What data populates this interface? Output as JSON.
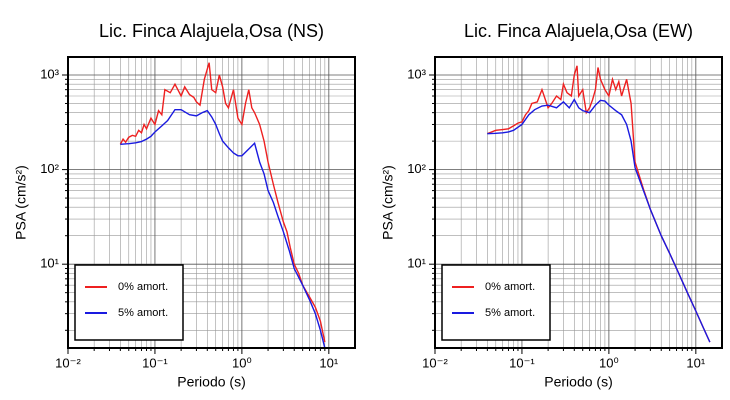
{
  "chart_data": [
    {
      "type": "line",
      "title": "Lic. Finca Alajuela,Osa (NS)",
      "x_label": "Periodo (s)",
      "y_label": "PSA (cm/s²)",
      "log_x": true,
      "log_y": true,
      "grid": true,
      "legend": "lower left",
      "xlim": [
        0.01,
        20
      ],
      "ylim": [
        1.3,
        1550
      ],
      "xticks": [
        {
          "value": 0.01,
          "label": "10⁻²"
        },
        {
          "value": 0.1,
          "label": "10⁻¹"
        },
        {
          "value": 1,
          "label": "10⁰"
        },
        {
          "value": 10,
          "label": "10¹"
        }
      ],
      "yticks": [
        {
          "value": 10,
          "label": "10¹"
        },
        {
          "value": 100,
          "label": "10²"
        },
        {
          "value": 1000,
          "label": "10³"
        }
      ],
      "xminorticks": [
        0.02,
        0.03,
        0.04,
        0.05,
        0.06,
        0.07,
        0.08,
        0.09,
        0.2,
        0.3,
        0.4,
        0.5,
        0.6,
        0.7,
        0.8,
        0.9,
        2,
        3,
        4,
        5,
        6,
        7,
        8,
        9
      ],
      "yminorticks": [
        2,
        3,
        4,
        5,
        6,
        7,
        8,
        9,
        20,
        30,
        40,
        50,
        60,
        70,
        80,
        90,
        200,
        300,
        400,
        500,
        600,
        700,
        800,
        900
      ],
      "series": [
        {
          "name": "0% amort.",
          "color": "#ee2020",
          "x": [
            0.04,
            0.043,
            0.046,
            0.05,
            0.055,
            0.06,
            0.065,
            0.07,
            0.075,
            0.08,
            0.09,
            0.1,
            0.11,
            0.12,
            0.13,
            0.15,
            0.17,
            0.2,
            0.22,
            0.25,
            0.28,
            0.3,
            0.33,
            0.37,
            0.42,
            0.45,
            0.5,
            0.55,
            0.6,
            0.65,
            0.7,
            0.8,
            0.9,
            1.0,
            1.1,
            1.2,
            1.3,
            1.4,
            1.6,
            1.8,
            2.0,
            2.3,
            2.6,
            3.0,
            3.3,
            3.6,
            4.0,
            4.5,
            5.0,
            6.0,
            7.0,
            8.0,
            9.0
          ],
          "values": [
            185,
            210,
            195,
            220,
            230,
            225,
            260,
            245,
            300,
            270,
            350,
            300,
            420,
            380,
            700,
            650,
            800,
            600,
            750,
            620,
            580,
            520,
            480,
            900,
            1350,
            700,
            650,
            1000,
            750,
            500,
            450,
            700,
            350,
            300,
            500,
            700,
            450,
            400,
            300,
            200,
            120,
            70,
            45,
            28,
            22,
            15,
            10,
            8,
            6,
            4.5,
            3.5,
            2.5,
            1.5
          ]
        },
        {
          "name": "5% amort.",
          "color": "#1a1ae0",
          "x": [
            0.04,
            0.05,
            0.06,
            0.07,
            0.08,
            0.09,
            0.1,
            0.12,
            0.14,
            0.17,
            0.2,
            0.25,
            0.3,
            0.35,
            0.4,
            0.45,
            0.5,
            0.55,
            0.6,
            0.7,
            0.8,
            0.9,
            1.0,
            1.2,
            1.4,
            1.6,
            1.8,
            2.0,
            2.3,
            2.6,
            3.0,
            3.5,
            4.0,
            5.0,
            6.0,
            7.0,
            8.0,
            9.0
          ],
          "values": [
            185,
            188,
            192,
            198,
            210,
            225,
            250,
            290,
            330,
            430,
            430,
            380,
            370,
            400,
            420,
            360,
            300,
            240,
            200,
            170,
            150,
            140,
            140,
            165,
            190,
            120,
            90,
            60,
            45,
            32,
            22,
            14,
            9,
            6,
            4.2,
            3,
            2,
            1.3
          ]
        }
      ]
    },
    {
      "type": "line",
      "title": "Lic. Finca Alajuela,Osa (EW)",
      "x_label": "Periodo (s)",
      "y_label": "PSA (cm/s²)",
      "log_x": true,
      "log_y": true,
      "grid": true,
      "legend": "lower left",
      "xlim": [
        0.01,
        20
      ],
      "ylim": [
        1.3,
        1550
      ],
      "xticks": [
        {
          "value": 0.01,
          "label": "10⁻²"
        },
        {
          "value": 0.1,
          "label": "10⁻¹"
        },
        {
          "value": 1,
          "label": "10⁰"
        },
        {
          "value": 10,
          "label": "10¹"
        }
      ],
      "yticks": [
        {
          "value": 10,
          "label": "10¹"
        },
        {
          "value": 100,
          "label": "10²"
        },
        {
          "value": 1000,
          "label": "10³"
        }
      ],
      "xminorticks": [
        0.02,
        0.03,
        0.04,
        0.05,
        0.06,
        0.07,
        0.08,
        0.09,
        0.2,
        0.3,
        0.4,
        0.5,
        0.6,
        0.7,
        0.8,
        0.9,
        2,
        3,
        4,
        5,
        6,
        7,
        8,
        9
      ],
      "yminorticks": [
        2,
        3,
        4,
        5,
        6,
        7,
        8,
        9,
        20,
        30,
        40,
        50,
        60,
        70,
        80,
        90,
        200,
        300,
        400,
        500,
        600,
        700,
        800,
        900
      ],
      "series": [
        {
          "name": "0% amort.",
          "color": "#ee2020",
          "x": [
            0.04,
            0.05,
            0.06,
            0.07,
            0.08,
            0.09,
            0.1,
            0.11,
            0.12,
            0.13,
            0.15,
            0.17,
            0.2,
            0.22,
            0.25,
            0.28,
            0.3,
            0.33,
            0.37,
            0.4,
            0.43,
            0.45,
            0.5,
            0.55,
            0.6,
            0.65,
            0.7,
            0.75,
            0.8,
            0.9,
            1.0,
            1.1,
            1.2,
            1.3,
            1.4,
            1.6,
            1.8,
            2.0,
            2.5,
            3.0,
            4.0,
            5.0,
            6.0,
            8.0,
            10,
            12,
            14.5
          ],
          "values": [
            240,
            260,
            265,
            270,
            290,
            310,
            320,
            380,
            420,
            500,
            520,
            700,
            450,
            500,
            600,
            550,
            800,
            650,
            600,
            1000,
            1250,
            600,
            700,
            400,
            450,
            550,
            700,
            1200,
            900,
            700,
            600,
            900,
            700,
            850,
            600,
            900,
            500,
            120,
            62,
            38,
            20,
            13,
            9,
            5,
            3.2,
            2.2,
            1.5
          ]
        },
        {
          "name": "5% amort.",
          "color": "#1a1ae0",
          "x": [
            0.04,
            0.05,
            0.06,
            0.07,
            0.08,
            0.1,
            0.12,
            0.14,
            0.17,
            0.2,
            0.25,
            0.3,
            0.35,
            0.4,
            0.45,
            0.5,
            0.6,
            0.7,
            0.8,
            0.9,
            1.0,
            1.2,
            1.4,
            1.6,
            1.8,
            2.0,
            2.5,
            3.0,
            4.0,
            5.0,
            6.0,
            8.0,
            10,
            12,
            14.5
          ],
          "values": [
            240,
            242,
            245,
            250,
            260,
            300,
            380,
            430,
            470,
            480,
            450,
            520,
            450,
            550,
            450,
            420,
            400,
            480,
            540,
            530,
            480,
            420,
            380,
            300,
            200,
            105,
            60,
            38,
            20,
            13,
            9,
            5,
            3.2,
            2.2,
            1.5
          ]
        }
      ]
    }
  ]
}
